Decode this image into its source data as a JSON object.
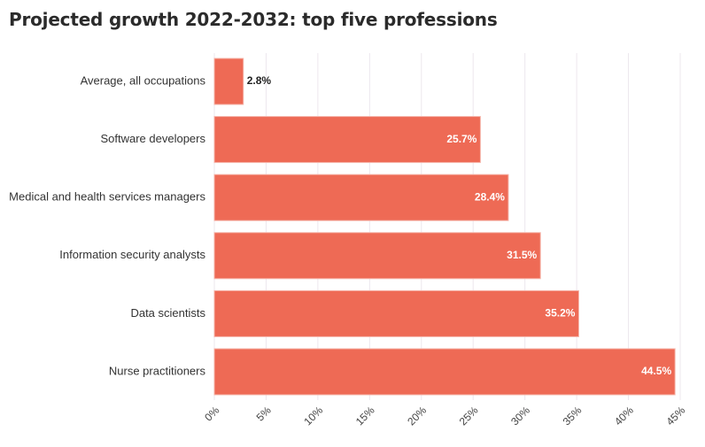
{
  "chart_data": {
    "type": "bar",
    "orientation": "horizontal",
    "title": "Projected growth 2022-2032: top five professions",
    "xlabel": "",
    "ylabel": "",
    "categories": [
      "Average, all occupations",
      "Software developers",
      "Medical and health services managers",
      "Information security analysts",
      "Data scientists",
      "Nurse practitioners"
    ],
    "values": [
      2.8,
      25.7,
      28.4,
      31.5,
      35.2,
      44.5
    ],
    "value_labels": [
      "2.8%",
      "25.7%",
      "28.4%",
      "31.5%",
      "35.2%",
      "44.5%"
    ],
    "xlim": [
      0,
      45
    ],
    "x_ticks": [
      0,
      5,
      10,
      15,
      20,
      25,
      30,
      35,
      40,
      45
    ],
    "x_tick_labels": [
      "0%",
      "5%",
      "10%",
      "15%",
      "20%",
      "25%",
      "30%",
      "35%",
      "40%",
      "45%"
    ],
    "grid": "vertical",
    "legend": "none",
    "colors": {
      "bar": "#ee6a55",
      "bar_stroke": "#f6b4a9",
      "grid": "#ece7ee",
      "label_inside": "#ffffff",
      "label_outside": "#222222"
    }
  }
}
